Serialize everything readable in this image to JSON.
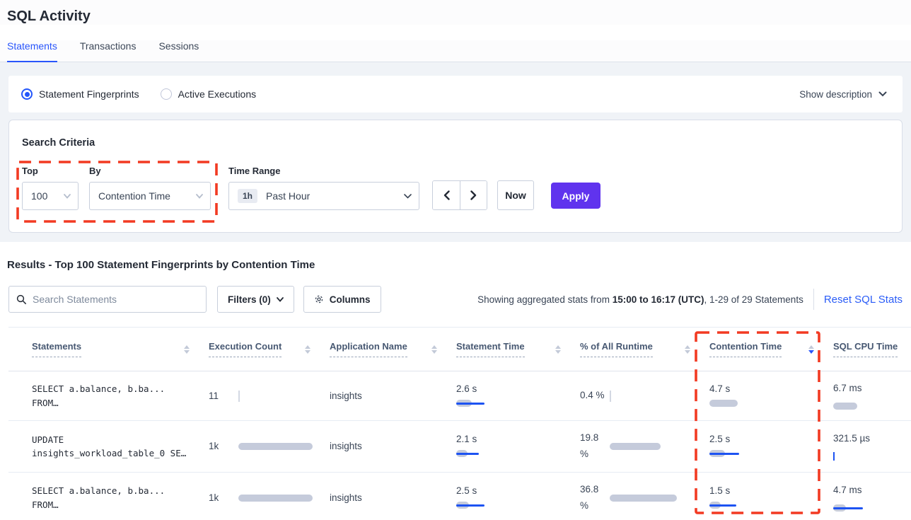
{
  "page": {
    "title": "SQL Activity"
  },
  "tabs": [
    {
      "label": "Statements",
      "active": true
    },
    {
      "label": "Transactions",
      "active": false
    },
    {
      "label": "Sessions",
      "active": false
    }
  ],
  "view": {
    "options": [
      {
        "label": "Statement Fingerprints",
        "selected": true
      },
      {
        "label": "Active Executions",
        "selected": false
      }
    ],
    "show_description": "Show description"
  },
  "search_criteria": {
    "title": "Search Criteria",
    "top": {
      "label": "Top",
      "value": "100"
    },
    "by": {
      "label": "By",
      "value": "Contention Time"
    },
    "time_range": {
      "label": "Time Range",
      "badge": "1h",
      "value": "Past Hour"
    },
    "now_label": "Now",
    "apply_label": "Apply"
  },
  "results": {
    "heading": "Results - Top 100 Statement Fingerprints by Contention Time",
    "search_placeholder": "Search Statements",
    "filters_label": "Filters (0)",
    "columns_label": "Columns",
    "stats_prefix": "Showing aggregated stats from ",
    "stats_range": "15:00 to 16:17 (UTC)",
    "stats_suffix": ", 1-29 of 29 Statements",
    "reset_label": "Reset SQL Stats"
  },
  "table": {
    "headers": [
      {
        "label": "Statements",
        "sortable": true,
        "sort": null
      },
      {
        "label": "Execution Count",
        "sortable": true,
        "sort": null
      },
      {
        "label": "Application Name",
        "sortable": true,
        "sort": null
      },
      {
        "label": "Statement Time",
        "sortable": true,
        "sort": null
      },
      {
        "label": "% of All Runtime",
        "sortable": true,
        "sort": null
      },
      {
        "label": "Contention Time",
        "sortable": true,
        "sort": "desc"
      },
      {
        "label": "SQL CPU Time",
        "sortable": false,
        "sort": null
      }
    ],
    "rows": [
      {
        "statement_line1": "SELECT a.balance, b.ba...",
        "statement_line2": "FROM…",
        "execution_count": {
          "text": "11",
          "tick": "gray"
        },
        "application": "insights",
        "statement_time": {
          "text": "2.6 s",
          "gray": 22,
          "blue": 40
        },
        "pct_runtime": {
          "text": "0.4 %",
          "tick": "gray"
        },
        "contention_time": {
          "text": "4.7 s",
          "gray": 40
        },
        "sql_cpu_time": {
          "text": "6.7 ms",
          "gray": 34
        }
      },
      {
        "statement_line1": "UPDATE",
        "statement_line2": "insights_workload_table_0 SE…",
        "execution_count": {
          "text": "1k",
          "gray": 105
        },
        "application": "insights",
        "statement_time": {
          "text": "2.1 s",
          "gray": 16,
          "blue": 32
        },
        "pct_runtime": {
          "text": "19.8 %",
          "gray": 72
        },
        "contention_time": {
          "text": "2.5 s",
          "gray": 22,
          "blue": 42
        },
        "sql_cpu_time": {
          "text": "321.5 µs",
          "tick": "blue"
        }
      },
      {
        "statement_line1": "SELECT a.balance, b.ba...",
        "statement_line2": "FROM…",
        "execution_count": {
          "text": "1k",
          "gray": 105
        },
        "application": "insights",
        "statement_time": {
          "text": "2.5 s",
          "gray": 18,
          "blue": 40
        },
        "pct_runtime": {
          "text": "36.8 %",
          "gray": 95
        },
        "contention_time": {
          "text": "1.5 s",
          "gray": 16,
          "blue": 38
        },
        "sql_cpu_time": {
          "text": "4.7 ms",
          "gray": 18,
          "blue": 42
        }
      }
    ]
  },
  "colors": {
    "accent_blue": "#2955fb",
    "apply_purple": "#6033ee",
    "annotation_red": "#f23a22",
    "bar_gray": "#c5cbdb",
    "bar_blue": "#1d53f2"
  }
}
